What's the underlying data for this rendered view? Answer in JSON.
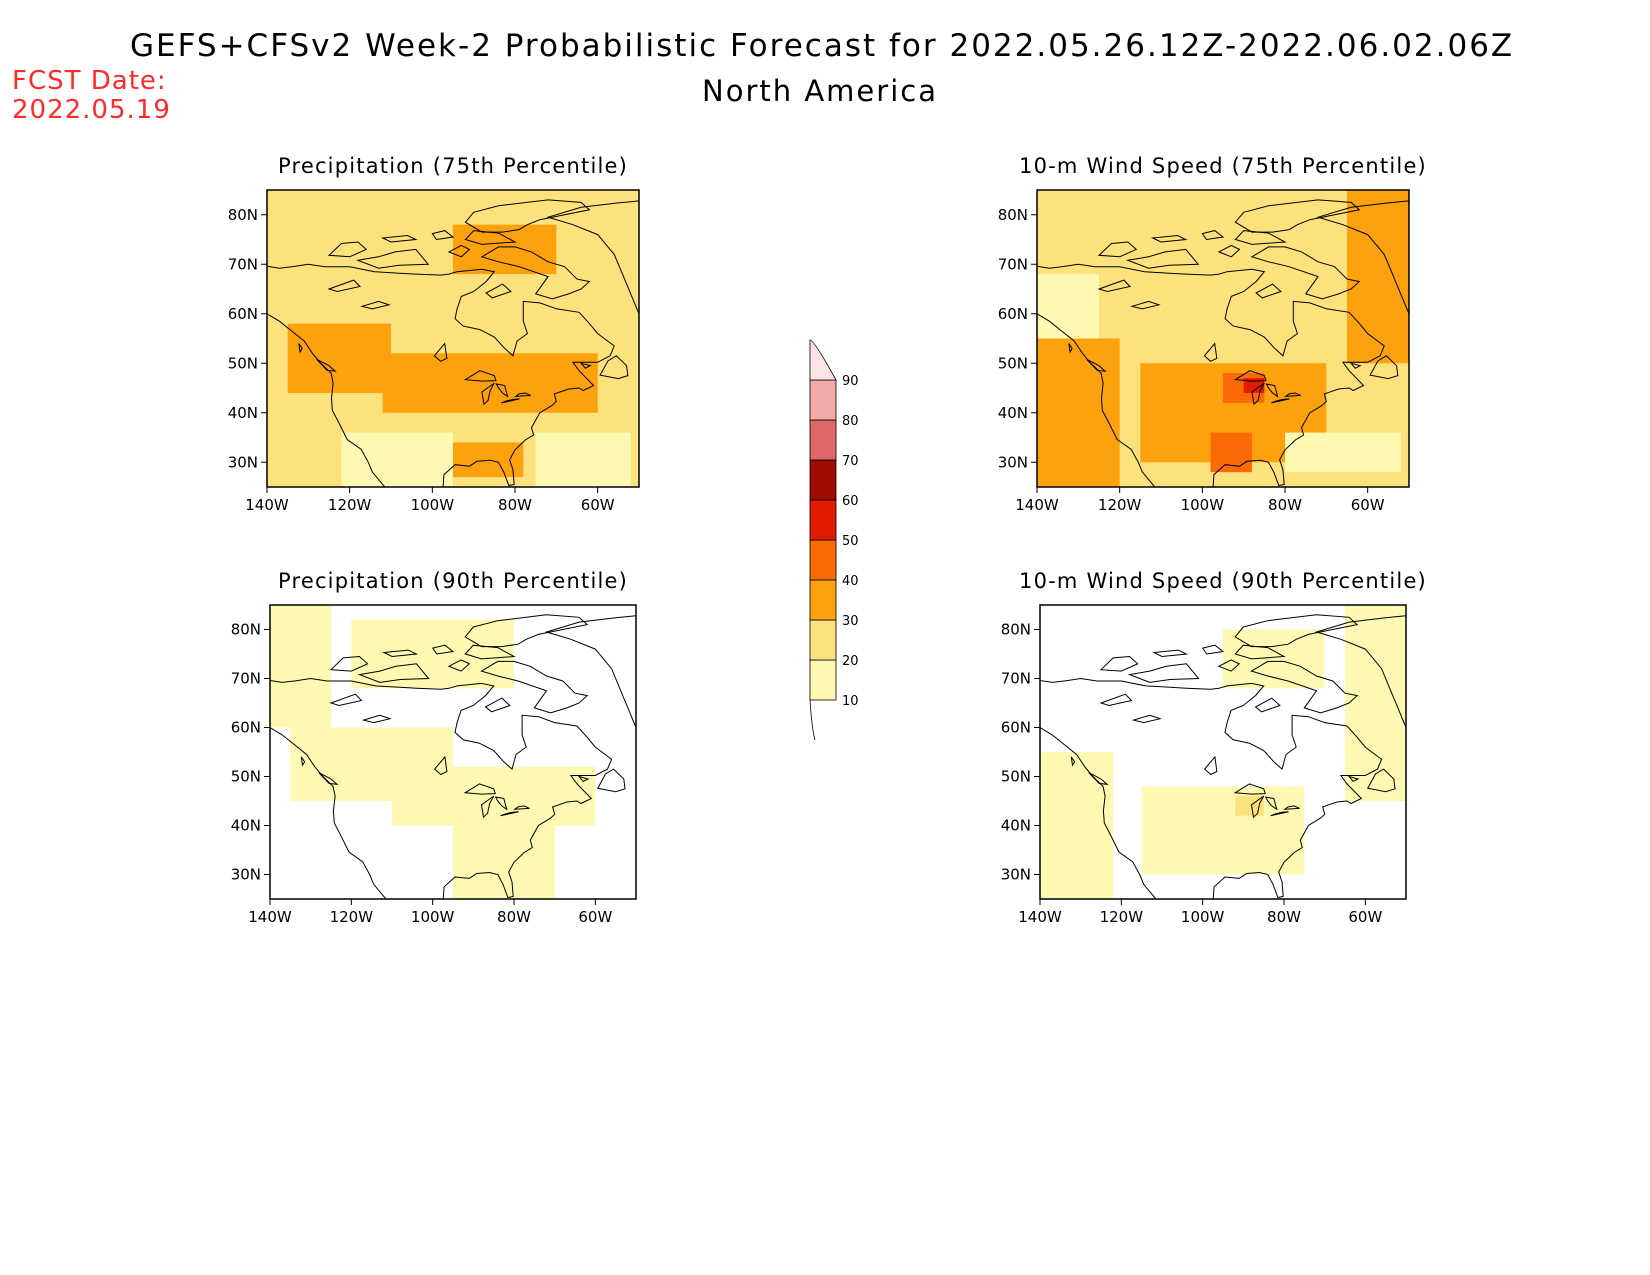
{
  "header": {
    "title": "GEFS+CFSv2 Week-2 Probabilistic Forecast for 2022.05.26.12Z-2022.06.02.06Z",
    "region": "North America",
    "fcst_label": "FCST Date:",
    "fcst_date": "2022.05.19"
  },
  "colors": {
    "c10": "#fef9b2",
    "c20": "#fde17c",
    "c30": "#fda10c",
    "c40": "#fc6a05",
    "c50": "#e21c03",
    "c60": "#a00b02",
    "c70": "#de6868",
    "c80": "#f4a9a9",
    "c90": "#fde4e4"
  },
  "colorbar": {
    "labels": [
      "90",
      "80",
      "70",
      "60",
      "50",
      "40",
      "30",
      "20",
      "10"
    ]
  },
  "panels": [
    {
      "title": "Precipitation (75th Percentile)",
      "lat_ticks": [
        "80N",
        "70N",
        "60N",
        "50N",
        "40N",
        "30N"
      ],
      "lon_ticks": [
        "140W",
        "120W",
        "100W",
        "80W",
        "60W"
      ],
      "regions": [
        {
          "level": 20,
          "lon": [
            -140,
            -50
          ],
          "lat": [
            25,
            85
          ]
        },
        {
          "level": 30,
          "lon": [
            -135,
            -110
          ],
          "lat": [
            44,
            58
          ]
        },
        {
          "level": 30,
          "lon": [
            -112,
            -60
          ],
          "lat": [
            40,
            52
          ]
        },
        {
          "level": 30,
          "lon": [
            -95,
            -78
          ],
          "lat": [
            27,
            34
          ]
        },
        {
          "level": 30,
          "lon": [
            -95,
            -70
          ],
          "lat": [
            68,
            78
          ]
        },
        {
          "level": 10,
          "lon": [
            -122,
            -95
          ],
          "lat": [
            25,
            36
          ]
        },
        {
          "level": 10,
          "lon": [
            -75,
            -52
          ],
          "lat": [
            25,
            36
          ]
        }
      ]
    },
    {
      "title": "10-m Wind Speed (75th Percentile)",
      "lat_ticks": [
        "80N",
        "70N",
        "60N",
        "50N",
        "40N",
        "30N"
      ],
      "lon_ticks": [
        "140W",
        "120W",
        "100W",
        "80W",
        "60W"
      ],
      "regions": [
        {
          "level": 20,
          "lon": [
            -140,
            -50
          ],
          "lat": [
            25,
            85
          ]
        },
        {
          "level": 30,
          "lon": [
            -140,
            -120
          ],
          "lat": [
            25,
            55
          ]
        },
        {
          "level": 30,
          "lon": [
            -115,
            -70
          ],
          "lat": [
            30,
            50
          ]
        },
        {
          "level": 30,
          "lon": [
            -65,
            -50
          ],
          "lat": [
            50,
            85
          ]
        },
        {
          "level": 40,
          "lon": [
            -95,
            -85
          ],
          "lat": [
            42,
            48
          ]
        },
        {
          "level": 40,
          "lon": [
            -98,
            -88
          ],
          "lat": [
            28,
            36
          ]
        },
        {
          "level": 50,
          "lon": [
            -90,
            -85
          ],
          "lat": [
            44,
            47
          ]
        },
        {
          "level": 10,
          "lon": [
            -140,
            -125
          ],
          "lat": [
            55,
            68
          ]
        },
        {
          "level": 10,
          "lon": [
            -80,
            -52
          ],
          "lat": [
            28,
            36
          ]
        }
      ]
    },
    {
      "title": "Precipitation (90th Percentile)",
      "lat_ticks": [
        "80N",
        "70N",
        "60N",
        "50N",
        "40N",
        "30N"
      ],
      "lon_ticks": [
        "140W",
        "120W",
        "100W",
        "80W",
        "60W"
      ],
      "regions": [
        {
          "level": 10,
          "lon": [
            -135,
            -95
          ],
          "lat": [
            45,
            60
          ]
        },
        {
          "level": 10,
          "lon": [
            -110,
            -60
          ],
          "lat": [
            40,
            52
          ]
        },
        {
          "level": 10,
          "lon": [
            -120,
            -80
          ],
          "lat": [
            68,
            82
          ]
        },
        {
          "level": 10,
          "lon": [
            -95,
            -70
          ],
          "lat": [
            25,
            40
          ]
        },
        {
          "level": 10,
          "lon": [
            -140,
            -125
          ],
          "lat": [
            60,
            85
          ]
        }
      ]
    },
    {
      "title": "10-m Wind Speed (90th Percentile)",
      "lat_ticks": [
        "80N",
        "70N",
        "60N",
        "50N",
        "40N",
        "30N"
      ],
      "lon_ticks": [
        "140W",
        "120W",
        "100W",
        "80W",
        "60W"
      ],
      "regions": [
        {
          "level": 10,
          "lon": [
            -140,
            -122
          ],
          "lat": [
            25,
            55
          ]
        },
        {
          "level": 10,
          "lon": [
            -115,
            -75
          ],
          "lat": [
            30,
            48
          ]
        },
        {
          "level": 10,
          "lon": [
            -65,
            -50
          ],
          "lat": [
            45,
            85
          ]
        },
        {
          "level": 10,
          "lon": [
            -95,
            -70
          ],
          "lat": [
            68,
            80
          ]
        },
        {
          "level": 20,
          "lon": [
            -92,
            -85
          ],
          "lat": [
            42,
            46
          ]
        }
      ]
    }
  ]
}
